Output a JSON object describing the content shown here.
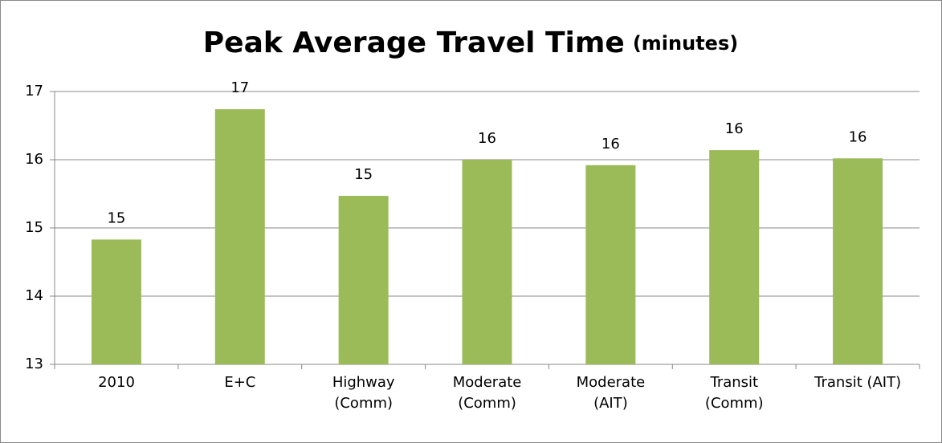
{
  "chart_data": {
    "type": "bar",
    "title": "Peak Average Travel Time",
    "subtitle": "(minutes)",
    "categories": [
      "2010",
      "E+C",
      "Highway\n(Comm)",
      "Moderate\n(Comm)",
      "Moderate\n(AIT)",
      "Transit\n(Comm)",
      "Transit (AIT)"
    ],
    "values": [
      14.83,
      16.74,
      15.47,
      16.0,
      15.92,
      16.14,
      16.02
    ],
    "value_labels": [
      "15",
      "17",
      "15",
      "16",
      "16",
      "16",
      "16"
    ],
    "color": "#9bbb59",
    "ylim": [
      13,
      17
    ],
    "yticks": [
      13,
      14,
      15,
      16,
      17
    ],
    "grid": true
  }
}
